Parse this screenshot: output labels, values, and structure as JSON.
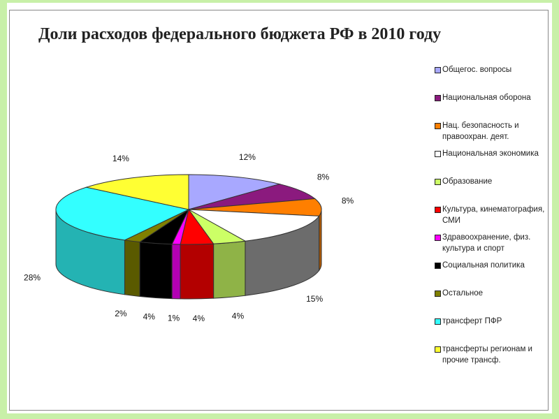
{
  "chart_data": {
    "type": "pie",
    "title": "Доли расходов федерального бюджета РФ в 2010 году",
    "legend_position": "right",
    "series": [
      {
        "label": "Общегос. вопросы",
        "value": 12,
        "value_label": "12%",
        "color": "#a8a8ff"
      },
      {
        "label": "Национальная оборона",
        "value": 8,
        "value_label": "8%",
        "color": "#8b1a7e"
      },
      {
        "label": "Нац. безопасность и правоохран. деят.",
        "value": 8,
        "value_label": "8%",
        "color": "#ff7f00"
      },
      {
        "label": "Национальная экономика",
        "value": 15,
        "value_label": "15%",
        "color": "#ffffff"
      },
      {
        "label": "Образование",
        "value": 4,
        "value_label": "4%",
        "color": "#ccff66"
      },
      {
        "label": "Культура, кинематография, СМИ",
        "value": 4,
        "value_label": "4%",
        "color": "#ff0000"
      },
      {
        "label": "Здравоохранение, физ. культура и спорт",
        "value": 1,
        "value_label": "1%",
        "color": "#ff00ff"
      },
      {
        "label": "Социальная политика",
        "value": 4,
        "value_label": "4%",
        "color": "#000000"
      },
      {
        "label": "Остальное",
        "value": 2,
        "value_label": "2%",
        "color": "#808000"
      },
      {
        "label": "трансферт ПФР",
        "value": 28,
        "value_label": "28%",
        "color": "#33ffff"
      },
      {
        "label": "трансферты регионам и прочие трансф.",
        "value": 14,
        "value_label": "14%",
        "color": "#ffff33"
      }
    ]
  }
}
